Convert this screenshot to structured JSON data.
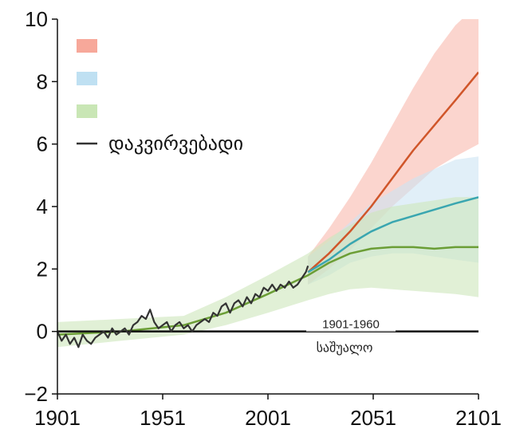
{
  "chart_data": {
    "type": "area",
    "xlim": [
      1901,
      2101
    ],
    "ylim": [
      -2,
      10
    ],
    "x_ticks": [
      "1901",
      "1951",
      "2001",
      "2051",
      "2101"
    ],
    "y_ticks": [
      "−2",
      "0",
      "2",
      "4",
      "6",
      "8",
      "10"
    ],
    "grid": false,
    "legend": {
      "placement": "top-left",
      "entries": [
        {
          "label": "",
          "color": "#f7a89a",
          "kind": "swatch"
        },
        {
          "label": "",
          "color": "#bfe0f2",
          "kind": "swatch"
        },
        {
          "label": "",
          "color": "#c9e6b5",
          "kind": "swatch"
        },
        {
          "label": "დაკვირვებადი",
          "color": "#333333",
          "kind": "line"
        }
      ]
    },
    "reference_line": {
      "y": 0,
      "label_top": "1901-1960",
      "label_bottom": "საშუალო"
    },
    "observed": {
      "x": [
        1901,
        1903,
        1905,
        1907,
        1909,
        1911,
        1913,
        1915,
        1917,
        1919,
        1921,
        1923,
        1925,
        1927,
        1929,
        1931,
        1933,
        1935,
        1937,
        1939,
        1941,
        1943,
        1945,
        1947,
        1949,
        1951,
        1953,
        1955,
        1957,
        1959,
        1961,
        1963,
        1965,
        1967,
        1969,
        1971,
        1973,
        1975,
        1977,
        1979,
        1981,
        1983,
        1985,
        1987,
        1989,
        1991,
        1993,
        1995,
        1997,
        1999,
        2001,
        2003,
        2005,
        2007,
        2009,
        2011,
        2013,
        2015,
        2017,
        2019,
        2020
      ],
      "y": [
        0.0,
        -0.3,
        -0.1,
        -0.4,
        -0.2,
        -0.5,
        -0.1,
        -0.3,
        -0.4,
        -0.2,
        -0.1,
        0.0,
        -0.2,
        0.1,
        -0.1,
        0.0,
        0.1,
        -0.1,
        0.2,
        0.3,
        0.5,
        0.4,
        0.7,
        0.3,
        0.1,
        0.2,
        0.3,
        0.0,
        0.2,
        0.3,
        0.1,
        0.2,
        0.0,
        0.2,
        0.3,
        0.4,
        0.3,
        0.6,
        0.5,
        0.8,
        0.9,
        0.6,
        0.9,
        1.0,
        0.8,
        1.1,
        0.9,
        1.2,
        1.1,
        1.4,
        1.3,
        1.5,
        1.3,
        1.5,
        1.4,
        1.6,
        1.4,
        1.5,
        1.7,
        1.9,
        2.1
      ]
    },
    "series": [
      {
        "color": "#d0562a",
        "fill": "#f9b9ad",
        "x": [
          2020,
          2030,
          2040,
          2050,
          2060,
          2070,
          2080,
          2090,
          2101
        ],
        "mean": [
          1.9,
          2.5,
          3.2,
          4.0,
          4.9,
          5.8,
          6.6,
          7.4,
          8.3
        ],
        "low": [
          1.5,
          2.0,
          2.6,
          3.3,
          4.0,
          4.6,
          5.2,
          5.6,
          6.0
        ],
        "high": [
          2.4,
          3.3,
          4.3,
          5.4,
          6.6,
          7.8,
          8.9,
          9.8,
          10.5
        ]
      },
      {
        "color": "#3aa6b0",
        "fill": "#cde5f3",
        "x": [
          2020,
          2030,
          2040,
          2050,
          2060,
          2070,
          2080,
          2090,
          2101
        ],
        "mean": [
          1.9,
          2.3,
          2.8,
          3.2,
          3.5,
          3.7,
          3.9,
          4.1,
          4.3
        ],
        "low": [
          1.5,
          1.8,
          2.2,
          2.4,
          2.5,
          2.5,
          2.4,
          2.3,
          2.2
        ],
        "high": [
          2.4,
          2.9,
          3.5,
          4.1,
          4.5,
          4.9,
          5.2,
          5.5,
          5.6
        ]
      },
      {
        "color": "#6b9e36",
        "fill": "#cde6bb",
        "x": [
          1901,
          1931,
          1961,
          1981,
          2001,
          2020,
          2030,
          2040,
          2050,
          2060,
          2070,
          2080,
          2090,
          2101
        ],
        "mean": [
          -0.1,
          0.0,
          0.2,
          0.6,
          1.2,
          1.8,
          2.2,
          2.5,
          2.65,
          2.7,
          2.7,
          2.65,
          2.7,
          2.7
        ],
        "low": [
          -0.5,
          -0.3,
          -0.1,
          0.2,
          0.6,
          1.0,
          1.2,
          1.35,
          1.4,
          1.35,
          1.3,
          1.25,
          1.2,
          1.1
        ],
        "high": [
          0.3,
          0.4,
          0.5,
          1.1,
          1.8,
          2.5,
          3.0,
          3.4,
          3.8,
          4.0,
          4.1,
          4.2,
          4.3,
          4.3
        ]
      }
    ]
  }
}
